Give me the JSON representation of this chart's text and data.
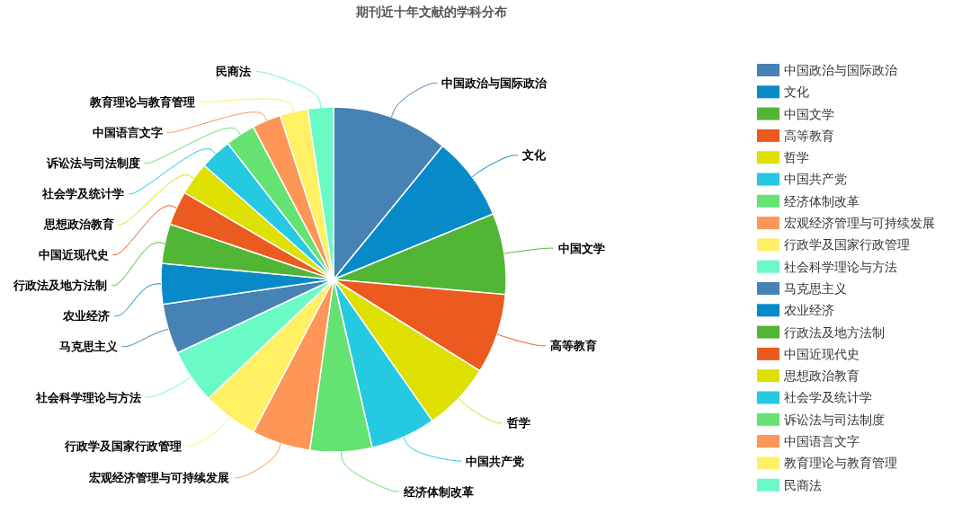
{
  "chart_data": {
    "type": "pie",
    "title": "期刊近十年文献的学科分布",
    "categories": [
      "中国政治与国际政治",
      "文化",
      "中国文学",
      "高等教育",
      "哲学",
      "中国共产党",
      "经济体制改革",
      "宏观经济管理与可持续发展",
      "行政学及国家行政管理",
      "社会科学理论与方法",
      "马克思主义",
      "农业经济",
      "行政法及地方法制",
      "中国近现代史",
      "思想政治教育",
      "社会学及统计学",
      "诉讼法与司法制度",
      "中国语言文字",
      "教育理论与教育管理",
      "民商法"
    ],
    "values": [
      10.9,
      7.9,
      7.6,
      7.5,
      6.4,
      6.1,
      5.8,
      5.5,
      5.2,
      5.1,
      4.7,
      3.8,
      3.7,
      3.2,
      3.1,
      3.0,
      2.8,
      2.7,
      2.6,
      2.4
    ],
    "colors": [
      "#4682b4",
      "#078bc8",
      "#51b535",
      "#eb5a1e",
      "#dde000",
      "#25c9e2",
      "#64e272",
      "#fd9656",
      "#fff064",
      "#6afac5",
      "#4682b4",
      "#078bc8",
      "#51b535",
      "#eb5a1e",
      "#dde000",
      "#25c9e2",
      "#64e272",
      "#fd9656",
      "#fff064",
      "#6afac5"
    ],
    "legend": "right"
  }
}
